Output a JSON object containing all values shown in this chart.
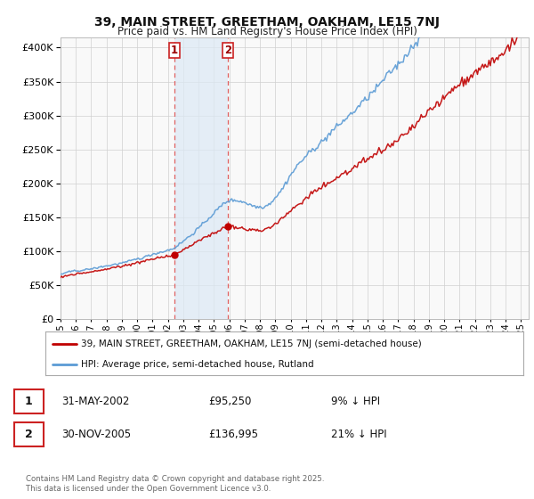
{
  "title_line1": "39, MAIN STREET, GREETHAM, OAKHAM, LE15 7NJ",
  "title_line2": "Price paid vs. HM Land Registry's House Price Index (HPI)",
  "ytick_values": [
    0,
    50000,
    100000,
    150000,
    200000,
    250000,
    300000,
    350000,
    400000
  ],
  "ylim": [
    0,
    415000
  ],
  "xlim_start": 1995.0,
  "xlim_end": 2025.5,
  "hpi_color": "#5b9bd5",
  "price_color": "#c00000",
  "shaded_color": "#dce9f5",
  "vline_color": "#e06060",
  "sale1_year": 2002.42,
  "sale1_price": 95250,
  "sale2_year": 2005.92,
  "sale2_price": 136995,
  "legend_label1": "39, MAIN STREET, GREETHAM, OAKHAM, LE15 7NJ (semi-detached house)",
  "legend_label2": "HPI: Average price, semi-detached house, Rutland",
  "ann1_date": "31-MAY-2002",
  "ann1_price": "£95,250",
  "ann1_pct": "9% ↓ HPI",
  "ann2_date": "30-NOV-2005",
  "ann2_price": "£136,995",
  "ann2_pct": "21% ↓ HPI",
  "footer": "Contains HM Land Registry data © Crown copyright and database right 2025.\nThis data is licensed under the Open Government Licence v3.0.",
  "bg_color": "#ffffff",
  "plot_bg": "#f9f9f9",
  "grid_color": "#d0d0d0"
}
